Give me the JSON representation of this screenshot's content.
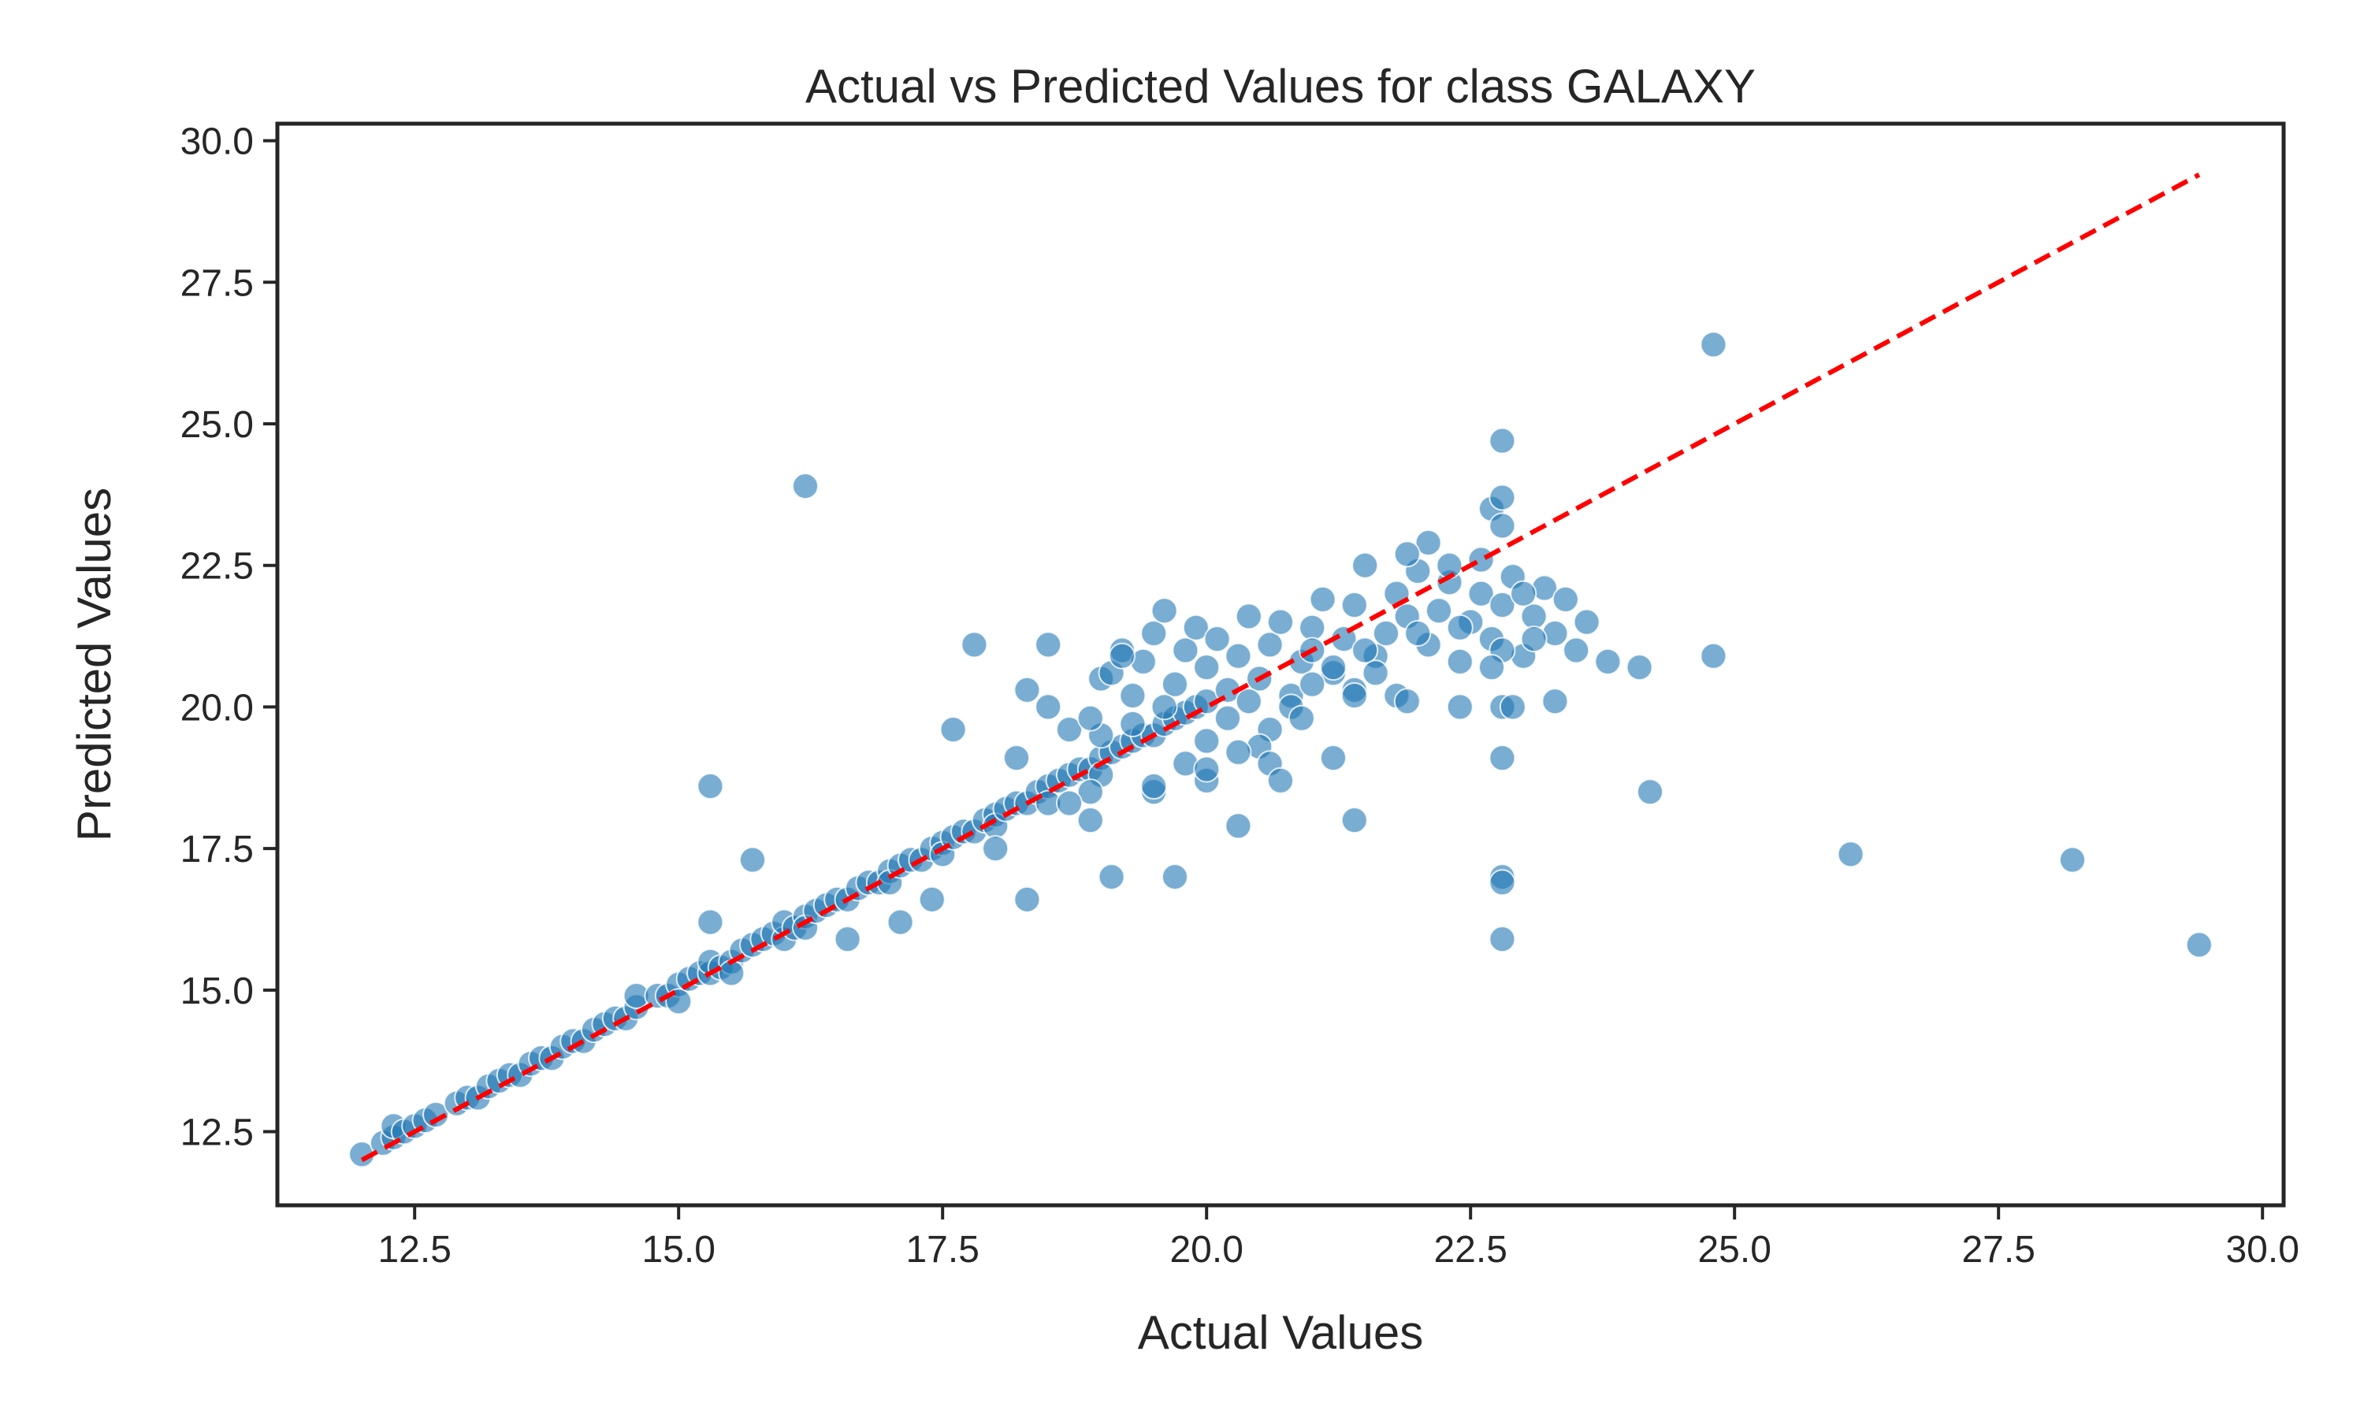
{
  "chart_data": {
    "type": "scatter",
    "title": "Actual vs Predicted Values for class GALAXY",
    "xlabel": "Actual Values",
    "ylabel": "Predicted Values",
    "xlim": [
      11.2,
      30.2
    ],
    "ylim": [
      11.2,
      30.3
    ],
    "xticks": [
      12.5,
      15.0,
      17.5,
      20.0,
      22.5,
      25.0,
      27.5,
      30.0
    ],
    "yticks": [
      12.5,
      15.0,
      17.5,
      20.0,
      22.5,
      25.0,
      27.5,
      30.0
    ],
    "xtick_labels": [
      "12.5",
      "15.0",
      "17.5",
      "20.0",
      "22.5",
      "25.0",
      "27.5",
      "30.0"
    ],
    "ytick_labels": [
      "12.5",
      "15.0",
      "17.5",
      "20.0",
      "22.5",
      "25.0",
      "27.5",
      "30.0"
    ],
    "grid": false,
    "point_color": "#1f77b4",
    "reference_line": {
      "x": [
        12.0,
        29.4
      ],
      "y": [
        12.0,
        29.4
      ],
      "color": "#ff0000",
      "style": "dashed"
    },
    "series": [
      {
        "points": [
          [
            12.0,
            12.1
          ],
          [
            12.2,
            12.3
          ],
          [
            12.3,
            12.4
          ],
          [
            12.3,
            12.6
          ],
          [
            12.4,
            12.5
          ],
          [
            12.5,
            12.6
          ],
          [
            12.6,
            12.7
          ],
          [
            12.7,
            12.8
          ],
          [
            12.9,
            13.0
          ],
          [
            13.0,
            13.1
          ],
          [
            13.1,
            13.1
          ],
          [
            13.2,
            13.3
          ],
          [
            13.3,
            13.4
          ],
          [
            13.4,
            13.5
          ],
          [
            13.5,
            13.5
          ],
          [
            13.6,
            13.7
          ],
          [
            13.7,
            13.8
          ],
          [
            13.8,
            13.8
          ],
          [
            13.9,
            14.0
          ],
          [
            14.0,
            14.1
          ],
          [
            14.1,
            14.1
          ],
          [
            14.2,
            14.3
          ],
          [
            14.3,
            14.4
          ],
          [
            14.4,
            14.5
          ],
          [
            14.5,
            14.5
          ],
          [
            14.6,
            14.7
          ],
          [
            14.6,
            14.9
          ],
          [
            14.8,
            14.9
          ],
          [
            14.9,
            14.9
          ],
          [
            15.0,
            15.1
          ],
          [
            15.0,
            14.8
          ],
          [
            15.1,
            15.2
          ],
          [
            15.2,
            15.3
          ],
          [
            15.3,
            15.3
          ],
          [
            15.3,
            15.5
          ],
          [
            15.4,
            15.4
          ],
          [
            15.5,
            15.5
          ],
          [
            15.5,
            15.3
          ],
          [
            15.6,
            15.7
          ],
          [
            15.7,
            15.8
          ],
          [
            15.8,
            15.9
          ],
          [
            15.9,
            16.0
          ],
          [
            16.0,
            15.9
          ],
          [
            16.0,
            16.2
          ],
          [
            16.1,
            16.1
          ],
          [
            16.2,
            16.3
          ],
          [
            16.2,
            16.1
          ],
          [
            16.3,
            16.4
          ],
          [
            16.4,
            16.5
          ],
          [
            16.5,
            16.6
          ],
          [
            16.6,
            16.6
          ],
          [
            16.7,
            16.8
          ],
          [
            16.8,
            16.9
          ],
          [
            16.9,
            16.9
          ],
          [
            17.0,
            17.1
          ],
          [
            17.0,
            16.9
          ],
          [
            17.1,
            17.2
          ],
          [
            17.2,
            17.3
          ],
          [
            17.3,
            17.3
          ],
          [
            17.4,
            17.5
          ],
          [
            17.5,
            17.6
          ],
          [
            17.5,
            17.4
          ],
          [
            17.6,
            17.7
          ],
          [
            17.7,
            17.8
          ],
          [
            17.8,
            17.8
          ],
          [
            17.9,
            18.0
          ],
          [
            18.0,
            18.1
          ],
          [
            18.0,
            17.9
          ],
          [
            18.1,
            18.2
          ],
          [
            18.2,
            18.3
          ],
          [
            18.3,
            18.3
          ],
          [
            18.4,
            18.5
          ],
          [
            18.5,
            18.6
          ],
          [
            18.5,
            18.3
          ],
          [
            18.6,
            18.7
          ],
          [
            18.7,
            18.8
          ],
          [
            18.8,
            18.9
          ],
          [
            18.9,
            18.9
          ],
          [
            19.0,
            19.1
          ],
          [
            19.0,
            18.8
          ],
          [
            19.1,
            19.2
          ],
          [
            19.2,
            19.3
          ],
          [
            19.3,
            19.4
          ],
          [
            19.4,
            19.5
          ],
          [
            19.5,
            19.5
          ],
          [
            19.6,
            19.7
          ],
          [
            19.7,
            19.8
          ],
          [
            19.8,
            19.9
          ],
          [
            19.9,
            20.0
          ],
          [
            20.0,
            20.1
          ],
          [
            19.0,
            20.5
          ],
          [
            19.1,
            20.6
          ],
          [
            19.2,
            21.0
          ],
          [
            19.3,
            20.2
          ],
          [
            19.4,
            20.8
          ],
          [
            19.5,
            21.3
          ],
          [
            19.6,
            21.7
          ],
          [
            19.7,
            20.4
          ],
          [
            19.8,
            21.0
          ],
          [
            19.9,
            21.4
          ],
          [
            20.0,
            20.7
          ],
          [
            20.1,
            21.2
          ],
          [
            20.2,
            20.3
          ],
          [
            20.3,
            20.9
          ],
          [
            20.4,
            21.6
          ],
          [
            20.5,
            20.5
          ],
          [
            20.6,
            21.1
          ],
          [
            20.7,
            21.5
          ],
          [
            20.8,
            20.2
          ],
          [
            20.9,
            20.8
          ],
          [
            21.0,
            21.4
          ],
          [
            21.1,
            21.9
          ],
          [
            21.2,
            20.6
          ],
          [
            21.3,
            21.2
          ],
          [
            21.4,
            21.8
          ],
          [
            21.5,
            22.5
          ],
          [
            21.6,
            20.9
          ],
          [
            21.7,
            21.3
          ],
          [
            21.8,
            22.0
          ],
          [
            21.9,
            21.6
          ],
          [
            22.0,
            22.4
          ],
          [
            22.1,
            21.1
          ],
          [
            22.2,
            21.7
          ],
          [
            22.3,
            22.2
          ],
          [
            22.4,
            20.8
          ],
          [
            22.5,
            21.5
          ],
          [
            22.6,
            22.0
          ],
          [
            22.7,
            21.2
          ],
          [
            22.8,
            21.8
          ],
          [
            22.9,
            22.3
          ],
          [
            23.0,
            20.9
          ],
          [
            23.1,
            21.6
          ],
          [
            23.2,
            22.1
          ],
          [
            23.3,
            21.3
          ],
          [
            23.4,
            21.9
          ],
          [
            23.5,
            21.0
          ],
          [
            23.6,
            21.5
          ],
          [
            22.8,
            20.0
          ],
          [
            22.9,
            20.0
          ],
          [
            22.8,
            21.0
          ],
          [
            20.0,
            19.4
          ],
          [
            20.2,
            19.8
          ],
          [
            20.4,
            20.1
          ],
          [
            20.6,
            19.6
          ],
          [
            20.8,
            20.0
          ],
          [
            21.0,
            20.4
          ],
          [
            21.2,
            20.7
          ],
          [
            21.4,
            20.3
          ],
          [
            21.6,
            20.6
          ],
          [
            21.8,
            20.2
          ],
          [
            19.5,
            18.5
          ],
          [
            19.8,
            19.0
          ],
          [
            20.0,
            18.7
          ],
          [
            20.5,
            19.3
          ],
          [
            19.3,
            19.7
          ],
          [
            19.0,
            19.5
          ],
          [
            18.9,
            18.5
          ],
          [
            18.7,
            18.3
          ],
          [
            19.6,
            20.0
          ],
          [
            21.0,
            21.0
          ],
          [
            22.1,
            22.9
          ],
          [
            21.9,
            22.7
          ],
          [
            22.6,
            22.6
          ],
          [
            22.3,
            22.5
          ],
          [
            22.0,
            21.3
          ],
          [
            21.5,
            21.0
          ],
          [
            22.4,
            21.4
          ],
          [
            23.0,
            22.0
          ],
          [
            23.1,
            21.2
          ],
          [
            22.7,
            20.7
          ],
          [
            23.8,
            20.8
          ],
          [
            24.1,
            20.7
          ],
          [
            23.3,
            20.1
          ],
          [
            22.4,
            20.0
          ],
          [
            21.9,
            20.1
          ],
          [
            21.4,
            20.2
          ],
          [
            20.9,
            19.8
          ],
          [
            20.6,
            19.0
          ],
          [
            20.3,
            19.2
          ],
          [
            20.0,
            18.9
          ],
          [
            16.2,
            23.9
          ],
          [
            24.8,
            26.4
          ],
          [
            24.8,
            20.9
          ],
          [
            24.2,
            18.5
          ],
          [
            26.1,
            17.4
          ],
          [
            28.2,
            17.3
          ],
          [
            29.4,
            15.8
          ],
          [
            22.8,
            24.7
          ],
          [
            22.7,
            23.5
          ],
          [
            22.8,
            23.2
          ],
          [
            22.8,
            23.7
          ],
          [
            22.8,
            19.1
          ],
          [
            22.8,
            17.0
          ],
          [
            22.8,
            16.9
          ],
          [
            22.8,
            15.9
          ],
          [
            21.4,
            18.0
          ],
          [
            21.2,
            19.1
          ],
          [
            20.3,
            17.9
          ],
          [
            19.7,
            17.0
          ],
          [
            19.1,
            17.0
          ],
          [
            18.3,
            16.6
          ],
          [
            18.0,
            17.5
          ],
          [
            17.6,
            19.6
          ],
          [
            17.8,
            21.1
          ],
          [
            18.3,
            20.3
          ],
          [
            18.5,
            21.1
          ],
          [
            18.5,
            20.0
          ],
          [
            18.7,
            19.6
          ],
          [
            18.9,
            19.8
          ],
          [
            19.2,
            20.9
          ],
          [
            19.5,
            18.6
          ],
          [
            18.9,
            18.0
          ],
          [
            20.7,
            18.7
          ],
          [
            17.1,
            16.2
          ],
          [
            17.4,
            16.6
          ],
          [
            16.6,
            15.9
          ],
          [
            15.3,
            18.6
          ],
          [
            15.3,
            16.2
          ],
          [
            15.7,
            17.3
          ],
          [
            18.2,
            19.1
          ]
        ]
      }
    ]
  }
}
